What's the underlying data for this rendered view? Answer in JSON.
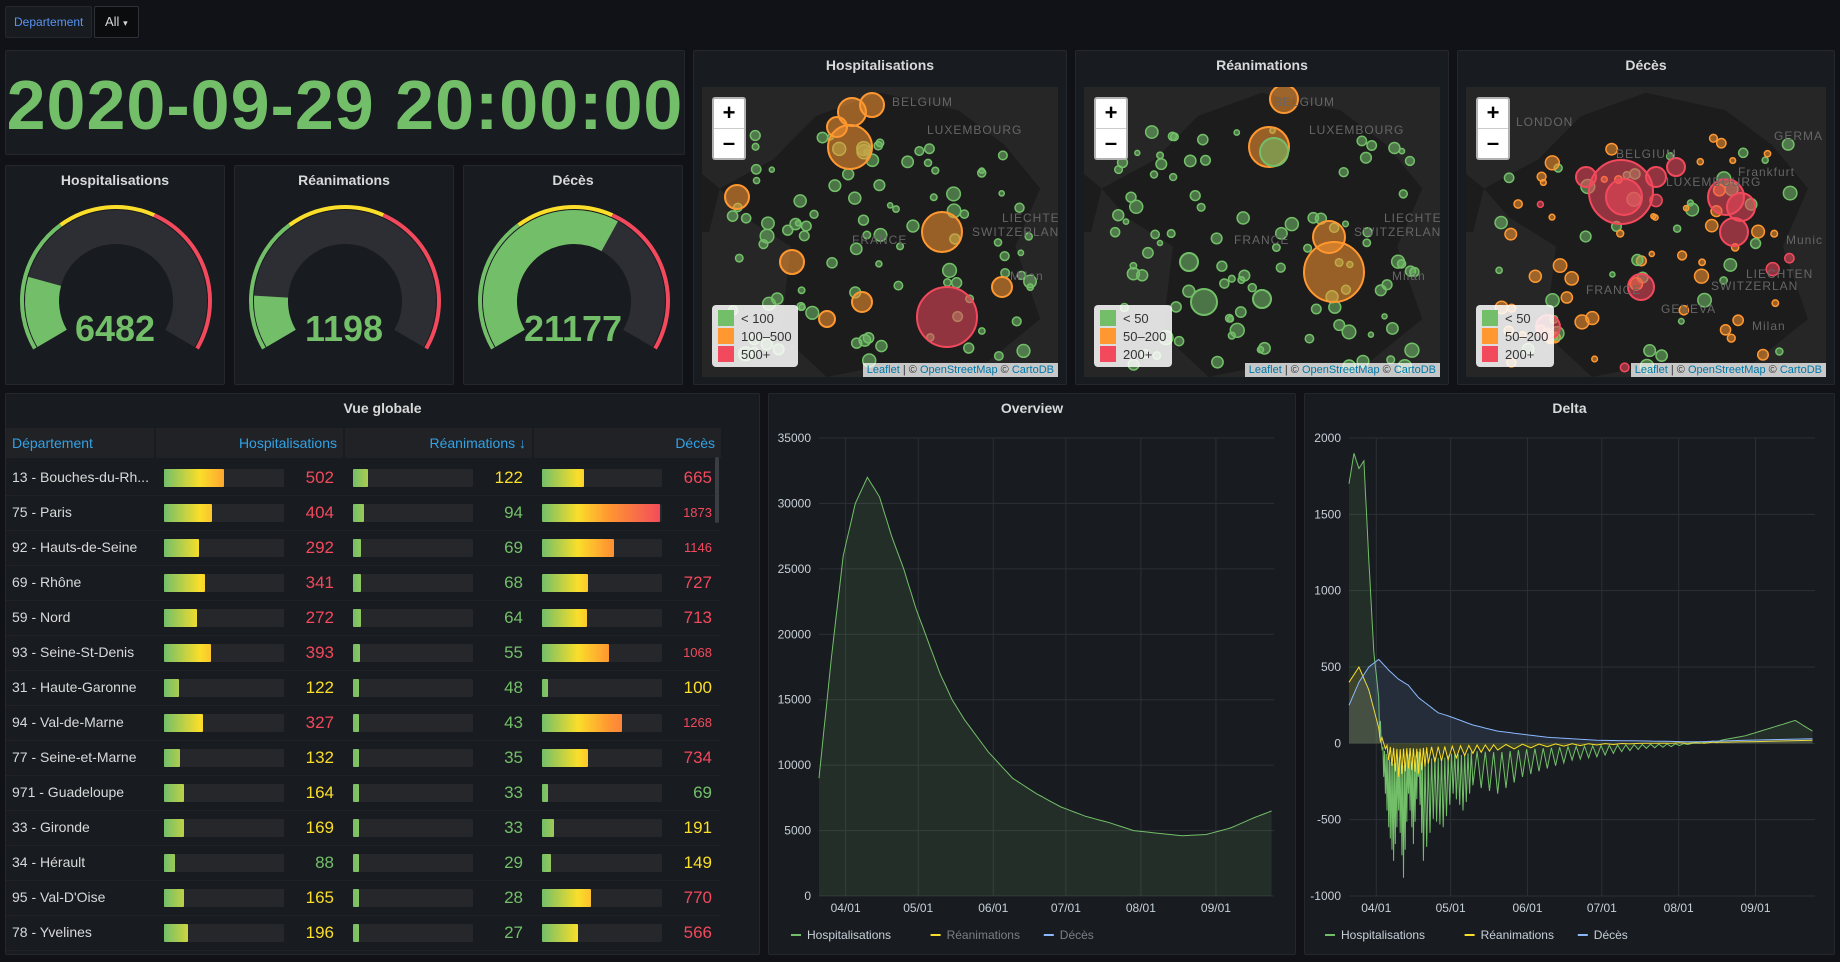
{
  "variables": {
    "label": "Departement",
    "value": "All"
  },
  "clock": {
    "value": "2020-09-29 20:00:00"
  },
  "gauges": [
    {
      "title": "Hospitalisations",
      "value": "6482",
      "fraction": 0.19
    },
    {
      "title": "Réanimations",
      "value": "1198",
      "fraction": 0.14
    },
    {
      "title": "Décès",
      "value": "21177",
      "fraction": 0.62
    }
  ],
  "maps": [
    {
      "title": "Hospitalisations",
      "legend": [
        "< 100",
        "100–500",
        "500+"
      ],
      "zoom_in": "+",
      "zoom_out": "–"
    },
    {
      "title": "Réanimations",
      "legend": [
        "< 50",
        "50–200",
        "200+"
      ],
      "zoom_in": "+",
      "zoom_out": "–"
    },
    {
      "title": "Décès",
      "legend": [
        "< 50",
        "50–200",
        "200+"
      ],
      "zoom_in": "+",
      "zoom_out": "–"
    }
  ],
  "map_labels": {
    "belgium": "BELGIUM",
    "luxembourg": "LUXEMBOURG",
    "france": "FRANCE",
    "switzerland": "SWITZERLAN",
    "liechtenstein": "LIECHTEN",
    "milan": "Milan",
    "geneva": "GENEVA",
    "london": "LONDON",
    "germany": "GERMA",
    "frankfurt": "Frankfurt",
    "munich": "Munic"
  },
  "attribution": {
    "leaflet": "Leaflet",
    "sep1": " | © ",
    "osm": "OpenStreetMap",
    "sep2": " © ",
    "carto": "CartoDB"
  },
  "table": {
    "title": "Vue globale",
    "headers": [
      "Département",
      "Hospitalisations",
      "Réanimations ↓",
      "Décès"
    ],
    "rows": [
      {
        "name": "13 - Bouches-du-Rh...",
        "hosp": 502,
        "rea": 122,
        "dc": 665
      },
      {
        "name": "75 - Paris",
        "hosp": 404,
        "rea": 94,
        "dc": 1873
      },
      {
        "name": "92 - Hauts-de-Seine",
        "hosp": 292,
        "rea": 69,
        "dc": 1146
      },
      {
        "name": "69 - Rhône",
        "hosp": 341,
        "rea": 68,
        "dc": 727
      },
      {
        "name": "59 - Nord",
        "hosp": 272,
        "rea": 64,
        "dc": 713
      },
      {
        "name": "93 - Seine-St-Denis",
        "hosp": 393,
        "rea": 55,
        "dc": 1068
      },
      {
        "name": "31 - Haute-Garonne",
        "hosp": 122,
        "rea": 48,
        "dc": 100
      },
      {
        "name": "94 - Val-de-Marne",
        "hosp": 327,
        "rea": 43,
        "dc": 1268
      },
      {
        "name": "77 - Seine-et-Marne",
        "hosp": 132,
        "rea": 35,
        "dc": 734
      },
      {
        "name": "971 - Guadeloupe",
        "hosp": 164,
        "rea": 33,
        "dc": 69
      },
      {
        "name": "33 - Gironde",
        "hosp": 169,
        "rea": 33,
        "dc": 191
      },
      {
        "name": "34 - Hérault",
        "hosp": 88,
        "rea": 29,
        "dc": 149
      },
      {
        "name": "95 - Val-D'Oise",
        "hosp": 165,
        "rea": 28,
        "dc": 770
      },
      {
        "name": "78 - Yvelines",
        "hosp": 196,
        "rea": 27,
        "dc": 566
      }
    ],
    "max": {
      "hosp": 1000,
      "rea": 1000,
      "dc": 1900
    }
  },
  "colors": {
    "green": "#73bf69",
    "orange": "#ff9830",
    "yellow": "#fade2a",
    "red": "#f2495c",
    "blue": "#5794f2",
    "lightblue": "#8ab8ff"
  },
  "chart_data": [
    {
      "type": "area",
      "title": "Overview",
      "x_ticks": [
        "04/01",
        "05/01",
        "06/01",
        "07/01",
        "08/01",
        "09/01"
      ],
      "y_ticks": [
        "0",
        "5000",
        "10000",
        "15000",
        "20000",
        "25000",
        "30000",
        "35000"
      ],
      "ylim": [
        0,
        35000
      ],
      "legend": [
        "Hospitalisations",
        "Réanimations",
        "Décès"
      ],
      "series": [
        {
          "name": "Hospitalisations",
          "days": [
            0,
            5,
            10,
            15,
            20,
            25,
            30,
            35,
            40,
            45,
            50,
            55,
            60,
            70,
            80,
            90,
            100,
            110,
            120,
            130,
            140,
            150,
            160,
            170,
            180,
            187
          ],
          "values": [
            9000,
            18000,
            26000,
            30000,
            32000,
            30500,
            27500,
            25000,
            22000,
            19500,
            17000,
            15000,
            13500,
            11000,
            9000,
            7800,
            6800,
            6100,
            5600,
            5000,
            4800,
            4600,
            4700,
            5200,
            6000,
            6500
          ]
        }
      ]
    },
    {
      "type": "line",
      "title": "Delta",
      "x_ticks": [
        "04/01",
        "05/01",
        "06/01",
        "07/01",
        "08/01",
        "09/01"
      ],
      "y_ticks": [
        "-1000",
        "-500",
        "0",
        "500",
        "1000",
        "1500",
        "2000"
      ],
      "ylim": [
        -1000,
        2000
      ],
      "legend": [
        "Hospitalisations",
        "Réanimations",
        "Décès"
      ],
      "series": [
        {
          "name": "Hospitalisations",
          "days": [
            0,
            2,
            4,
            6,
            8,
            10,
            12,
            14,
            16,
            18,
            20,
            22,
            24,
            26,
            28,
            30,
            34,
            38,
            42,
            46,
            50,
            60,
            70,
            80,
            90,
            100,
            110,
            120,
            130,
            140,
            150,
            160,
            170,
            180,
            187
          ],
          "values": [
            1700,
            1900,
            1800,
            1850,
            1200,
            600,
            300,
            -200,
            -500,
            -700,
            -400,
            -800,
            -300,
            -600,
            -200,
            -700,
            -450,
            -500,
            -300,
            -400,
            -250,
            -300,
            -200,
            -150,
            -100,
            -80,
            -50,
            -30,
            -20,
            0,
            20,
            50,
            100,
            150,
            80
          ]
        },
        {
          "name": "Réanimations",
          "days": [
            0,
            4,
            8,
            12,
            16,
            20,
            24,
            28,
            32,
            40,
            50,
            60,
            80,
            100,
            120,
            140,
            160,
            187
          ],
          "values": [
            400,
            500,
            350,
            100,
            -100,
            -200,
            -150,
            -180,
            -120,
            -100,
            -60,
            -40,
            -20,
            -10,
            0,
            5,
            10,
            20
          ]
        },
        {
          "name": "Décès",
          "days": [
            0,
            4,
            8,
            12,
            16,
            20,
            24,
            28,
            32,
            36,
            40,
            50,
            60,
            70,
            80,
            90,
            100,
            120,
            140,
            160,
            187
          ],
          "values": [
            250,
            400,
            500,
            550,
            480,
            420,
            380,
            300,
            250,
            200,
            180,
            120,
            80,
            60,
            40,
            30,
            20,
            15,
            10,
            20,
            30
          ]
        }
      ]
    }
  ]
}
